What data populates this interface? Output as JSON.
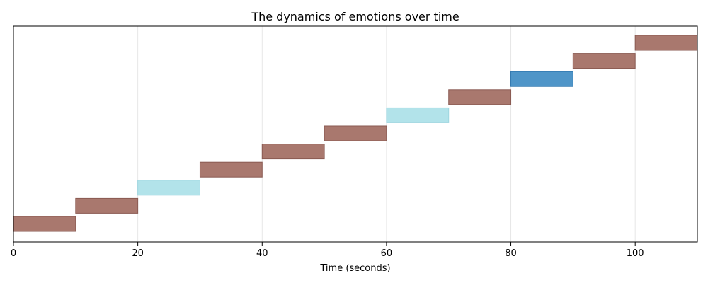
{
  "chart_data": {
    "type": "bar",
    "orientation": "horizontal-timeline",
    "title": "The dynamics of emotions over time",
    "xlabel": "Time (seconds)",
    "ylabel": "",
    "xlim": [
      0,
      110
    ],
    "xticks": [
      0,
      20,
      40,
      60,
      80,
      100
    ],
    "grid": {
      "x": true,
      "y": false
    },
    "legend": "none",
    "colors": {
      "brown": "#a9786e",
      "brown_edge": "#8a5a52",
      "light_cyan": "#b2e3ea",
      "light_cyan_edge": "#9ed6e0",
      "blue": "#4f95c8",
      "blue_edge": "#2f76ae"
    },
    "segments": [
      {
        "start": 0,
        "end": 10,
        "row": 0,
        "color": "brown"
      },
      {
        "start": 10,
        "end": 20,
        "row": 1,
        "color": "brown"
      },
      {
        "start": 20,
        "end": 30,
        "row": 2,
        "color": "light_cyan"
      },
      {
        "start": 30,
        "end": 40,
        "row": 3,
        "color": "brown"
      },
      {
        "start": 40,
        "end": 50,
        "row": 4,
        "color": "brown"
      },
      {
        "start": 50,
        "end": 60,
        "row": 5,
        "color": "brown"
      },
      {
        "start": 60,
        "end": 70,
        "row": 6,
        "color": "light_cyan"
      },
      {
        "start": 70,
        "end": 80,
        "row": 7,
        "color": "brown"
      },
      {
        "start": 80,
        "end": 90,
        "row": 8,
        "color": "blue"
      },
      {
        "start": 90,
        "end": 100,
        "row": 9,
        "color": "brown"
      },
      {
        "start": 100,
        "end": 110,
        "row": 10,
        "color": "brown"
      }
    ]
  }
}
